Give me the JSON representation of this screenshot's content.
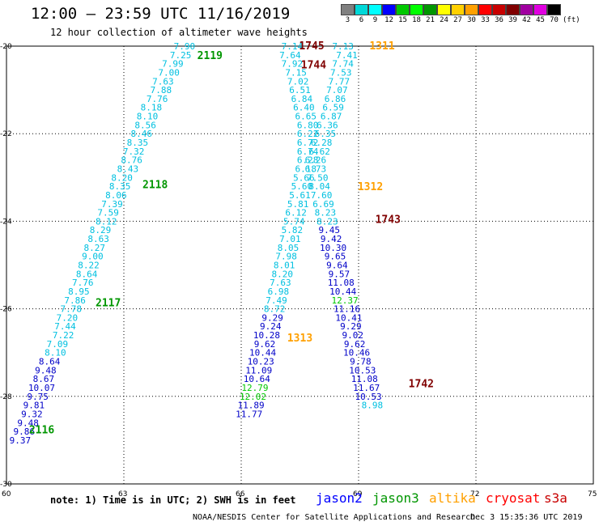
{
  "header": {
    "title": "12:00 — 23:59 UTC 11/16/2019",
    "subtitle": "12 hour collection of altimeter wave heights"
  },
  "legend": {
    "colors": [
      "#808080",
      "#00d8d8",
      "#00ffff",
      "#0000ff",
      "#00c800",
      "#00ff00",
      "#009600",
      "#ffff00",
      "#ffd000",
      "#ffa000",
      "#ff0000",
      "#c80000",
      "#800000",
      "#a000a0",
      "#e000e0",
      "#000000"
    ],
    "labels": [
      "3",
      "6",
      "9",
      "12",
      "15",
      "18",
      "21",
      "24",
      "27",
      "30",
      "33",
      "36",
      "39",
      "42",
      "45",
      "70",
      "(ft)"
    ]
  },
  "axes": {
    "lon_ticks": [
      "60",
      "63",
      "66",
      "69",
      "72",
      "75"
    ],
    "lat_ticks": [
      "-20",
      "-22",
      "-24",
      "-26",
      "-28",
      "-30"
    ]
  },
  "note": "note: 1) Time is in UTC; 2) SWH is in feet",
  "satellites": [
    {
      "name": "jason2",
      "color": "#0000ff"
    },
    {
      "name": "jason3",
      "color": "#009600"
    },
    {
      "name": "altika",
      "color": "#ffa000"
    },
    {
      "name": "cryosat",
      "color": "#ff0000"
    },
    {
      "name": "s3a",
      "color": "#c80000"
    }
  ],
  "footer": {
    "credit": "NOAA/NESDIS Center for Satellite Applications and Research",
    "date": "Dec  3 15:35:36 UTC 2019"
  },
  "chart_data": {
    "type": "map",
    "xlim": [
      60,
      75
    ],
    "ylim": [
      -30,
      -20
    ],
    "track_times": [
      {
        "text": "2119",
        "lon": 65.2,
        "lat": -20.2,
        "color": "#009600"
      },
      {
        "text": "2118",
        "lon": 63.8,
        "lat": -23.15,
        "color": "#009600"
      },
      {
        "text": "2117",
        "lon": 62.6,
        "lat": -25.85,
        "color": "#009600"
      },
      {
        "text": "2116",
        "lon": 60.9,
        "lat": -28.75,
        "color": "#009600"
      },
      {
        "text": "1745",
        "lon": 67.8,
        "lat": -19.98,
        "color": "#800000"
      },
      {
        "text": "1744",
        "lon": 67.85,
        "lat": -20.42,
        "color": "#800000"
      },
      {
        "text": "1743",
        "lon": 69.75,
        "lat": -23.95,
        "color": "#800000"
      },
      {
        "text": "1742",
        "lon": 70.6,
        "lat": -27.7,
        "color": "#800000"
      },
      {
        "text": "1311",
        "lon": 69.6,
        "lat": -19.98,
        "color": "#ffa000"
      },
      {
        "text": "1312",
        "lon": 69.3,
        "lat": -23.2,
        "color": "#ffa000"
      },
      {
        "text": "1313",
        "lon": 67.5,
        "lat": -26.65,
        "color": "#ffa000"
      }
    ],
    "points": [
      {
        "text": "7.90",
        "lon": 64.55,
        "lat": -20.0,
        "color": "#00c0e0"
      },
      {
        "text": "7.25",
        "lon": 64.45,
        "lat": -20.2,
        "color": "#00c0e0"
      },
      {
        "text": "7.99",
        "lon": 64.25,
        "lat": -20.4,
        "color": "#00c0e0"
      },
      {
        "text": "7.00",
        "lon": 64.15,
        "lat": -20.6,
        "color": "#00c0e0"
      },
      {
        "text": "7.63",
        "lon": 64.0,
        "lat": -20.8,
        "color": "#00c0e0"
      },
      {
        "text": "7.88",
        "lon": 63.95,
        "lat": -21.0,
        "color": "#00c0e0"
      },
      {
        "text": "7.76",
        "lon": 63.85,
        "lat": -21.2,
        "color": "#00c0e0"
      },
      {
        "text": "8.18",
        "lon": 63.7,
        "lat": -21.4,
        "color": "#00c0e0"
      },
      {
        "text": "8.10",
        "lon": 63.6,
        "lat": -21.6,
        "color": "#00c0e0"
      },
      {
        "text": "8.56",
        "lon": 63.55,
        "lat": -21.8,
        "color": "#00c0e0"
      },
      {
        "text": "8.46",
        "lon": 63.45,
        "lat": -22.0,
        "color": "#00c0e0"
      },
      {
        "text": "8.35",
        "lon": 63.35,
        "lat": -22.2,
        "color": "#00c0e0"
      },
      {
        "text": "7.32",
        "lon": 63.25,
        "lat": -22.4,
        "color": "#00c0e0"
      },
      {
        "text": "8.76",
        "lon": 63.2,
        "lat": -22.6,
        "color": "#00c0e0"
      },
      {
        "text": "8.43",
        "lon": 63.1,
        "lat": -22.8,
        "color": "#00c0e0"
      },
      {
        "text": "8.20",
        "lon": 62.95,
        "lat": -23.0,
        "color": "#00c0e0"
      },
      {
        "text": "8.35",
        "lon": 62.9,
        "lat": -23.2,
        "color": "#00c0e0"
      },
      {
        "text": "8.06",
        "lon": 62.8,
        "lat": -23.4,
        "color": "#00c0e0"
      },
      {
        "text": "7.39",
        "lon": 62.7,
        "lat": -23.6,
        "color": "#00c0e0"
      },
      {
        "text": "7.59",
        "lon": 62.6,
        "lat": -23.8,
        "color": "#00c0e0"
      },
      {
        "text": "8.12",
        "lon": 62.55,
        "lat": -24.0,
        "color": "#00c0e0"
      },
      {
        "text": "8.29",
        "lon": 62.4,
        "lat": -24.2,
        "color": "#00c0e0"
      },
      {
        "text": "8.63",
        "lon": 62.35,
        "lat": -24.4,
        "color": "#00c0e0"
      },
      {
        "text": "8.27",
        "lon": 62.25,
        "lat": -24.6,
        "color": "#00c0e0"
      },
      {
        "text": "9.00",
        "lon": 62.2,
        "lat": -24.8,
        "color": "#00c0e0"
      },
      {
        "text": "8.22",
        "lon": 62.1,
        "lat": -25.0,
        "color": "#00c0e0"
      },
      {
        "text": "8.64",
        "lon": 62.05,
        "lat": -25.2,
        "color": "#00c0e0"
      },
      {
        "text": "7.76",
        "lon": 61.95,
        "lat": -25.4,
        "color": "#00c0e0"
      },
      {
        "text": "8.95",
        "lon": 61.85,
        "lat": -25.6,
        "color": "#00c0e0"
      },
      {
        "text": "7.86",
        "lon": 61.75,
        "lat": -25.8,
        "color": "#00c0e0"
      },
      {
        "text": "7.78",
        "lon": 61.65,
        "lat": -26.0,
        "color": "#00c0e0"
      },
      {
        "text": "7.20",
        "lon": 61.55,
        "lat": -26.2,
        "color": "#00c0e0"
      },
      {
        "text": "7.44",
        "lon": 61.5,
        "lat": -26.4,
        "color": "#00c0e0"
      },
      {
        "text": "7.22",
        "lon": 61.45,
        "lat": -26.6,
        "color": "#00c0e0"
      },
      {
        "text": "7.09",
        "lon": 61.3,
        "lat": -26.8,
        "color": "#00c0e0"
      },
      {
        "text": "8.10",
        "lon": 61.25,
        "lat": -27.0,
        "color": "#00c0e0"
      },
      {
        "text": "8.64",
        "lon": 61.1,
        "lat": -27.2,
        "color": "#0000c8"
      },
      {
        "text": "9.48",
        "lon": 61.0,
        "lat": -27.4,
        "color": "#0000c8"
      },
      {
        "text": "8.67",
        "lon": 60.95,
        "lat": -27.6,
        "color": "#0000c8"
      },
      {
        "text": "10.07",
        "lon": 60.9,
        "lat": -27.8,
        "color": "#0000c8"
      },
      {
        "text": "9.75",
        "lon": 60.8,
        "lat": -28.0,
        "color": "#0000c8"
      },
      {
        "text": "9.81",
        "lon": 60.7,
        "lat": -28.2,
        "color": "#0000c8"
      },
      {
        "text": "9.32",
        "lon": 60.65,
        "lat": -28.4,
        "color": "#0000c8"
      },
      {
        "text": "9.48",
        "lon": 60.55,
        "lat": -28.6,
        "color": "#0000c8"
      },
      {
        "text": "9.86",
        "lon": 60.45,
        "lat": -28.8,
        "color": "#0000c8"
      },
      {
        "text": "9.37",
        "lon": 60.35,
        "lat": -29.0,
        "color": "#0000c8"
      },
      {
        "text": "7.14",
        "lon": 67.3,
        "lat": -20.0,
        "color": "#00c0e0"
      },
      {
        "text": "7.64",
        "lon": 67.25,
        "lat": -20.2,
        "color": "#00c0e0"
      },
      {
        "text": "7.92",
        "lon": 67.3,
        "lat": -20.4,
        "color": "#00c0e0"
      },
      {
        "text": "7.15",
        "lon": 67.4,
        "lat": -20.6,
        "color": "#00c0e0"
      },
      {
        "text": "7.02",
        "lon": 67.45,
        "lat": -20.8,
        "color": "#00c0e0"
      },
      {
        "text": "6.51",
        "lon": 67.5,
        "lat": -21.0,
        "color": "#00c0e0"
      },
      {
        "text": "6.84",
        "lon": 67.55,
        "lat": -21.2,
        "color": "#00c0e0"
      },
      {
        "text": "6.40",
        "lon": 67.6,
        "lat": -21.4,
        "color": "#00c0e0"
      },
      {
        "text": "6.65",
        "lon": 67.65,
        "lat": -21.6,
        "color": "#00c0e0"
      },
      {
        "text": "6.80",
        "lon": 67.7,
        "lat": -21.8,
        "color": "#00c0e0"
      },
      {
        "text": "6.22",
        "lon": 67.7,
        "lat": -22.0,
        "color": "#00c0e0"
      },
      {
        "text": "6.72",
        "lon": 67.7,
        "lat": -22.2,
        "color": "#00c0e0"
      },
      {
        "text": "6.74",
        "lon": 67.7,
        "lat": -22.4,
        "color": "#00c0e0"
      },
      {
        "text": "6.28",
        "lon": 67.7,
        "lat": -22.6,
        "color": "#00c0e0"
      },
      {
        "text": "6.18",
        "lon": 67.65,
        "lat": -22.8,
        "color": "#00c0e0"
      },
      {
        "text": "5.66",
        "lon": 67.6,
        "lat": -23.0,
        "color": "#00c0e0"
      },
      {
        "text": "5.60",
        "lon": 67.55,
        "lat": -23.2,
        "color": "#00c0e0"
      },
      {
        "text": "5.61",
        "lon": 67.5,
        "lat": -23.4,
        "color": "#00c0e0"
      },
      {
        "text": "5.81",
        "lon": 67.45,
        "lat": -23.6,
        "color": "#00c0e0"
      },
      {
        "text": "6.12",
        "lon": 67.4,
        "lat": -23.8,
        "color": "#00c0e0"
      },
      {
        "text": "5.74",
        "lon": 67.35,
        "lat": -24.0,
        "color": "#00c0e0"
      },
      {
        "text": "5.82",
        "lon": 67.3,
        "lat": -24.2,
        "color": "#00c0e0"
      },
      {
        "text": "7.01",
        "lon": 67.25,
        "lat": -24.4,
        "color": "#00c0e0"
      },
      {
        "text": "8.05",
        "lon": 67.2,
        "lat": -24.6,
        "color": "#00c0e0"
      },
      {
        "text": "7.98",
        "lon": 67.15,
        "lat": -24.8,
        "color": "#00c0e0"
      },
      {
        "text": "8.01",
        "lon": 67.1,
        "lat": -25.0,
        "color": "#00c0e0"
      },
      {
        "text": "8.20",
        "lon": 67.05,
        "lat": -25.2,
        "color": "#00c0e0"
      },
      {
        "text": "7.63",
        "lon": 67.0,
        "lat": -25.4,
        "color": "#00c0e0"
      },
      {
        "text": "6.98",
        "lon": 66.95,
        "lat": -25.6,
        "color": "#00c0e0"
      },
      {
        "text": "7.49",
        "lon": 66.9,
        "lat": -25.8,
        "color": "#00c0e0"
      },
      {
        "text": "8.72",
        "lon": 66.85,
        "lat": -26.0,
        "color": "#00c0e0"
      },
      {
        "text": "9.29",
        "lon": 66.8,
        "lat": -26.2,
        "color": "#0000c8"
      },
      {
        "text": "9.24",
        "lon": 66.75,
        "lat": -26.4,
        "color": "#0000c8"
      },
      {
        "text": "10.28",
        "lon": 66.65,
        "lat": -26.6,
        "color": "#0000c8"
      },
      {
        "text": "9.62",
        "lon": 66.6,
        "lat": -26.8,
        "color": "#0000c8"
      },
      {
        "text": "10.44",
        "lon": 66.55,
        "lat": -27.0,
        "color": "#0000c8"
      },
      {
        "text": "10.23",
        "lon": 66.5,
        "lat": -27.2,
        "color": "#0000c8"
      },
      {
        "text": "11.09",
        "lon": 66.45,
        "lat": -27.4,
        "color": "#0000c8"
      },
      {
        "text": "10.64",
        "lon": 66.4,
        "lat": -27.6,
        "color": "#0000c8"
      },
      {
        "text": "12.79",
        "lon": 66.35,
        "lat": -27.8,
        "color": "#00c800"
      },
      {
        "text": "12.02",
        "lon": 66.3,
        "lat": -28.0,
        "color": "#00c800"
      },
      {
        "text": "11.89",
        "lon": 66.25,
        "lat": -28.2,
        "color": "#0000c8"
      },
      {
        "text": "11.77",
        "lon": 66.2,
        "lat": -28.4,
        "color": "#0000c8"
      },
      {
        "text": "7.13",
        "lon": 68.6,
        "lat": -20.0,
        "color": "#00c0e0"
      },
      {
        "text": "7.41",
        "lon": 68.7,
        "lat": -20.2,
        "color": "#00c0e0"
      },
      {
        "text": "7.74",
        "lon": 68.6,
        "lat": -20.4,
        "color": "#00c0e0"
      },
      {
        "text": "7.53",
        "lon": 68.55,
        "lat": -20.6,
        "color": "#00c0e0"
      },
      {
        "text": "7.77",
        "lon": 68.5,
        "lat": -20.8,
        "color": "#00c0e0"
      },
      {
        "text": "7.07",
        "lon": 68.45,
        "lat": -21.0,
        "color": "#00c0e0"
      },
      {
        "text": "6.86",
        "lon": 68.4,
        "lat": -21.2,
        "color": "#00c0e0"
      },
      {
        "text": "6.59",
        "lon": 68.35,
        "lat": -21.4,
        "color": "#00c0e0"
      },
      {
        "text": "6.87",
        "lon": 68.3,
        "lat": -21.6,
        "color": "#00c0e0"
      },
      {
        "text": "6.36",
        "lon": 68.2,
        "lat": -21.8,
        "color": "#00c0e0"
      },
      {
        "text": "6.35",
        "lon": 68.15,
        "lat": -22.0,
        "color": "#00c0e0"
      },
      {
        "text": "6.28",
        "lon": 68.05,
        "lat": -22.2,
        "color": "#00c0e0"
      },
      {
        "text": "6.62",
        "lon": 68.0,
        "lat": -22.4,
        "color": "#00c0e0"
      },
      {
        "text": "6.26",
        "lon": 67.9,
        "lat": -22.6,
        "color": "#00c0e0"
      },
      {
        "text": "6.73",
        "lon": 67.9,
        "lat": -22.8,
        "color": "#00c0e0"
      },
      {
        "text": "7.50",
        "lon": 67.95,
        "lat": -23.0,
        "color": "#00c0e0"
      },
      {
        "text": "8.04",
        "lon": 68.0,
        "lat": -23.2,
        "color": "#00c0e0"
      },
      {
        "text": "7.60",
        "lon": 68.05,
        "lat": -23.4,
        "color": "#00c0e0"
      },
      {
        "text": "6.69",
        "lon": 68.1,
        "lat": -23.6,
        "color": "#00c0e0"
      },
      {
        "text": "8.23",
        "lon": 68.15,
        "lat": -23.8,
        "color": "#00c0e0"
      },
      {
        "text": "8.23",
        "lon": 68.2,
        "lat": -24.0,
        "color": "#00c0e0"
      },
      {
        "text": "9.45",
        "lon": 68.25,
        "lat": -24.2,
        "color": "#0000c8"
      },
      {
        "text": "9.42",
        "lon": 68.3,
        "lat": -24.4,
        "color": "#0000c8"
      },
      {
        "text": "10.30",
        "lon": 68.35,
        "lat": -24.6,
        "color": "#0000c8"
      },
      {
        "text": "9.65",
        "lon": 68.4,
        "lat": -24.8,
        "color": "#0000c8"
      },
      {
        "text": "9.64",
        "lon": 68.45,
        "lat": -25.0,
        "color": "#0000c8"
      },
      {
        "text": "9.57",
        "lon": 68.5,
        "lat": -25.2,
        "color": "#0000c8"
      },
      {
        "text": "11.08",
        "lon": 68.55,
        "lat": -25.4,
        "color": "#0000c8"
      },
      {
        "text": "10.44",
        "lon": 68.6,
        "lat": -25.6,
        "color": "#0000c8"
      },
      {
        "text": "12.37",
        "lon": 68.65,
        "lat": -25.8,
        "color": "#00c800"
      },
      {
        "text": "11.16",
        "lon": 68.7,
        "lat": -26.0,
        "color": "#0000c8"
      },
      {
        "text": "10.41",
        "lon": 68.75,
        "lat": -26.2,
        "color": "#0000c8"
      },
      {
        "text": "9.29",
        "lon": 68.8,
        "lat": -26.4,
        "color": "#0000c8"
      },
      {
        "text": "9.02",
        "lon": 68.85,
        "lat": -26.6,
        "color": "#0000c8"
      },
      {
        "text": "9.62",
        "lon": 68.9,
        "lat": -26.8,
        "color": "#0000c8"
      },
      {
        "text": "10.46",
        "lon": 68.95,
        "lat": -27.0,
        "color": "#0000c8"
      },
      {
        "text": "9.78",
        "lon": 69.05,
        "lat": -27.2,
        "color": "#0000c8"
      },
      {
        "text": "10.53",
        "lon": 69.1,
        "lat": -27.4,
        "color": "#0000c8"
      },
      {
        "text": "11.08",
        "lon": 69.15,
        "lat": -27.6,
        "color": "#0000c8"
      },
      {
        "text": "11.67",
        "lon": 69.2,
        "lat": -27.8,
        "color": "#0000c8"
      },
      {
        "text": "10.53",
        "lon": 69.25,
        "lat": -28.0,
        "color": "#0000c8"
      },
      {
        "text": "8.98",
        "lon": 69.35,
        "lat": -28.2,
        "color": "#00c0e0"
      }
    ]
  }
}
